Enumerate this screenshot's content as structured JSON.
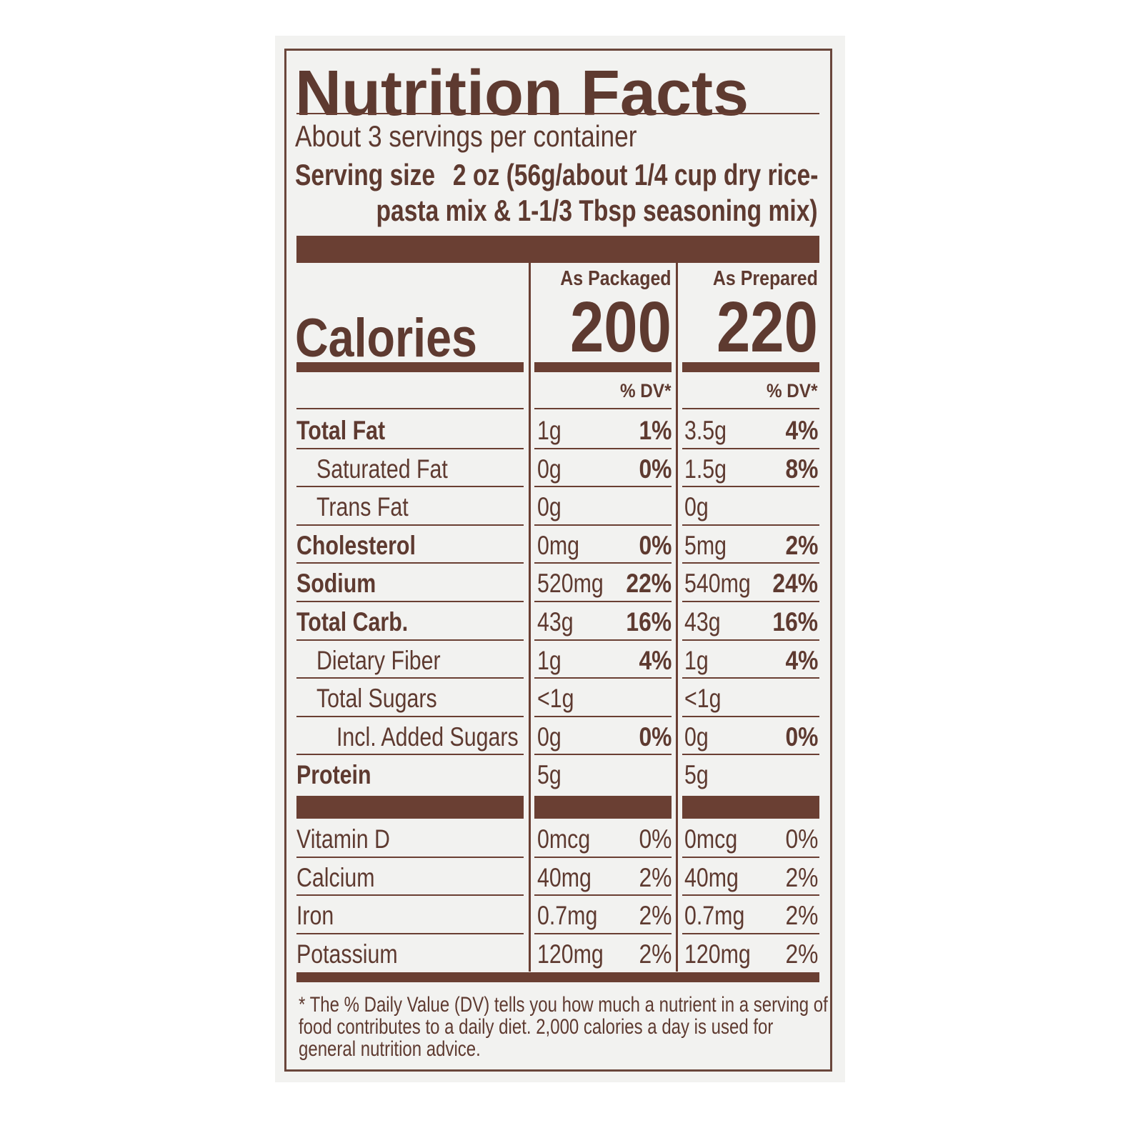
{
  "label": {
    "title": "Nutrition Facts",
    "servings": "About 3 servings per container",
    "serving_size_label": "Serving size",
    "serving_size_value": [
      "2 oz (56g/about 1/4 cup dry rice-",
      "pasta mix & 1-1/3 Tbsp seasoning mix)"
    ],
    "calories_label": "Calories",
    "columns": [
      {
        "header": "As Packaged",
        "calories": "200",
        "dv_header": "% DV*"
      },
      {
        "header": "As Prepared",
        "calories": "220",
        "dv_header": "% DV*"
      }
    ],
    "nutrients": [
      {
        "name": "Total Fat",
        "level": 0,
        "values": [
          {
            "amount": "1g",
            "dv": "1%"
          },
          {
            "amount": "3.5g",
            "dv": "4%"
          }
        ]
      },
      {
        "name": "Saturated Fat",
        "level": 1,
        "values": [
          {
            "amount": "0g",
            "dv": "0%"
          },
          {
            "amount": "1.5g",
            "dv": "8%"
          }
        ]
      },
      {
        "name": "Trans Fat",
        "level": 1,
        "values": [
          {
            "amount": "0g"
          },
          {
            "amount": "0g"
          }
        ]
      },
      {
        "name": "Cholesterol",
        "level": 0,
        "values": [
          {
            "amount": "0mg",
            "dv": "0%"
          },
          {
            "amount": "5mg",
            "dv": "2%"
          }
        ]
      },
      {
        "name": "Sodium",
        "level": 0,
        "values": [
          {
            "amount": "520mg",
            "dv": "22%"
          },
          {
            "amount": "540mg",
            "dv": "24%"
          }
        ]
      },
      {
        "name": "Total Carb.",
        "level": 0,
        "values": [
          {
            "amount": "43g",
            "dv": "16%"
          },
          {
            "amount": "43g",
            "dv": "16%"
          }
        ]
      },
      {
        "name": "Dietary Fiber",
        "level": 1,
        "values": [
          {
            "amount": "1g",
            "dv": "4%"
          },
          {
            "amount": "1g",
            "dv": "4%"
          }
        ]
      },
      {
        "name": "Total Sugars",
        "level": 1,
        "values": [
          {
            "amount": "<1g"
          },
          {
            "amount": "<1g"
          }
        ]
      },
      {
        "name": "Incl. Added Sugars",
        "level": 2,
        "values": [
          {
            "amount": "0g",
            "dv": "0%"
          },
          {
            "amount": "0g",
            "dv": "0%"
          }
        ]
      },
      {
        "name": "Protein",
        "level": 0,
        "values": [
          {
            "amount": "5g"
          },
          {
            "amount": "5g"
          }
        ]
      }
    ],
    "vitamins_minerals": [
      {
        "name": "Vitamin D",
        "values": [
          {
            "amount": "0mcg",
            "dv": "0%"
          },
          {
            "amount": "0mcg",
            "dv": "0%"
          }
        ]
      },
      {
        "name": "Calcium",
        "values": [
          {
            "amount": "40mg",
            "dv": "2%"
          },
          {
            "amount": "40mg",
            "dv": "2%"
          }
        ]
      },
      {
        "name": "Iron",
        "values": [
          {
            "amount": "0.7mg",
            "dv": "2%"
          },
          {
            "amount": "0.7mg",
            "dv": "2%"
          }
        ]
      },
      {
        "name": "Potassium",
        "values": [
          {
            "amount": "120mg",
            "dv": "2%"
          },
          {
            "amount": "120mg",
            "dv": "2%"
          }
        ]
      }
    ],
    "footnote": [
      "* The % Daily Value (DV) tells you how much a nutrient in a serving of",
      "food contributes to a daily diet. 2,000 calories a day is used for",
      "general nutrition advice."
    ]
  }
}
